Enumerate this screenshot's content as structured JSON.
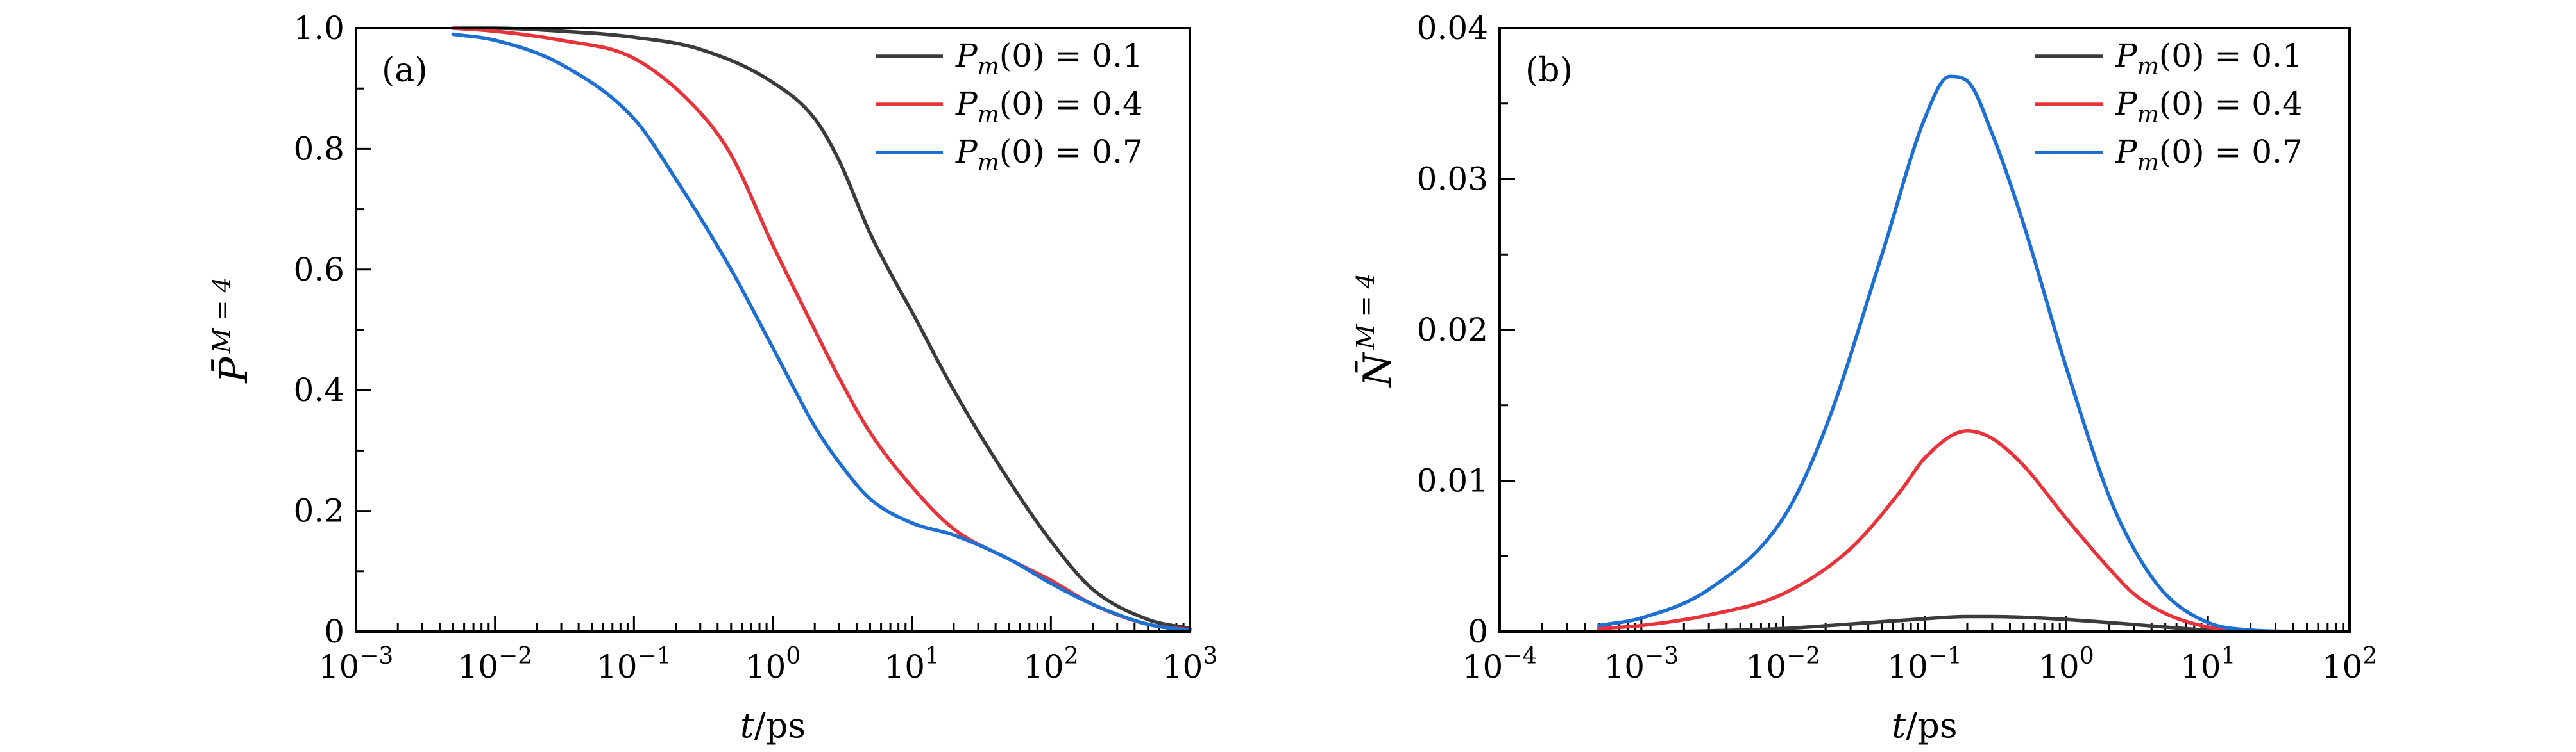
{
  "colors": {
    "black": "#3b3b3b",
    "red": "#e8333b",
    "blue": "#1e6fd2"
  },
  "chart_data": [
    {
      "type": "line",
      "panel_label": "(a)",
      "xscale": "log",
      "xlim": [
        0.001,
        1000
      ],
      "ylim": [
        0,
        1.0
      ],
      "xlabel": "t/ps",
      "ylabel": "P̄ M = 4",
      "x_ticks": [
        "10−3",
        "10−2",
        "10−1",
        "100",
        "101",
        "102",
        "103"
      ],
      "y_ticks": [
        "0",
        "0.2",
        "0.4",
        "0.6",
        "0.8",
        "1.0"
      ],
      "legend_position": "top-right",
      "series": [
        {
          "name": "Pm(0) = 0.1",
          "color": "#3b3b3b",
          "x": [
            0.005,
            0.01,
            0.03,
            0.1,
            0.3,
            1,
            2,
            3,
            5,
            8,
            10,
            20,
            50,
            100,
            200,
            500,
            1000
          ],
          "y": [
            1.0,
            1.0,
            0.995,
            0.985,
            0.965,
            0.91,
            0.85,
            0.78,
            0.66,
            0.57,
            0.53,
            0.4,
            0.25,
            0.15,
            0.07,
            0.02,
            0.005
          ]
        },
        {
          "name": "Pm(0) = 0.4",
          "color": "#e8333b",
          "x": [
            0.005,
            0.01,
            0.03,
            0.1,
            0.3,
            0.5,
            1,
            2,
            3,
            5,
            10,
            20,
            50,
            100,
            200,
            500,
            1000
          ],
          "y": [
            1.0,
            0.995,
            0.98,
            0.95,
            0.86,
            0.79,
            0.64,
            0.5,
            0.42,
            0.33,
            0.24,
            0.17,
            0.12,
            0.085,
            0.045,
            0.012,
            0.003
          ]
        },
        {
          "name": "Pm(0) = 0.7",
          "color": "#1e6fd2",
          "x": [
            0.005,
            0.01,
            0.03,
            0.1,
            0.2,
            0.5,
            1,
            2,
            3,
            5,
            10,
            20,
            50,
            100,
            200,
            500,
            1000
          ],
          "y": [
            0.99,
            0.98,
            0.94,
            0.85,
            0.75,
            0.6,
            0.47,
            0.34,
            0.28,
            0.22,
            0.18,
            0.16,
            0.12,
            0.08,
            0.045,
            0.012,
            0.002
          ]
        }
      ]
    },
    {
      "type": "line",
      "panel_label": "(b)",
      "xscale": "log",
      "xlim": [
        0.0001,
        100
      ],
      "ylim": [
        0,
        0.04
      ],
      "xlabel": "t/ps",
      "ylabel": "N̄ M = 4",
      "x_ticks": [
        "10−4",
        "10−3",
        "10−2",
        "10−1",
        "100",
        "101",
        "102"
      ],
      "y_ticks": [
        "0",
        "0.01",
        "0.02",
        "0.03",
        "0.04"
      ],
      "legend_position": "top-right",
      "series": [
        {
          "name": "Pm(0) = 0.1",
          "color": "#3b3b3b",
          "x": [
            0.0005,
            0.001,
            0.003,
            0.01,
            0.03,
            0.1,
            0.2,
            0.3,
            0.5,
            1,
            2,
            5,
            10,
            20,
            50,
            100
          ],
          "y": [
            0.0,
            0.0,
            5e-05,
            0.0002,
            0.0005,
            0.00085,
            0.001,
            0.001,
            0.00095,
            0.0008,
            0.0006,
            0.0003,
            0.0001,
            3e-05,
            0.0,
            0.0
          ]
        },
        {
          "name": "Pm(0) = 0.4",
          "color": "#e8333b",
          "x": [
            0.0005,
            0.001,
            0.003,
            0.01,
            0.03,
            0.07,
            0.1,
            0.2,
            0.3,
            0.5,
            1,
            2,
            3,
            5,
            10,
            20,
            50,
            100
          ],
          "y": [
            0.0002,
            0.0004,
            0.0011,
            0.0025,
            0.0055,
            0.0095,
            0.0115,
            0.0133,
            0.0128,
            0.011,
            0.0075,
            0.0042,
            0.0025,
            0.0012,
            0.0003,
            5e-05,
            0.0,
            0.0
          ]
        },
        {
          "name": "Pm(0) = 0.7",
          "color": "#1e6fd2",
          "x": [
            0.0005,
            0.001,
            0.003,
            0.01,
            0.02,
            0.05,
            0.1,
            0.15,
            0.2,
            0.3,
            0.5,
            1,
            2,
            3,
            5,
            10,
            20,
            50,
            100
          ],
          "y": [
            0.0004,
            0.0009,
            0.0028,
            0.0075,
            0.0135,
            0.025,
            0.034,
            0.0368,
            0.0365,
            0.033,
            0.027,
            0.0175,
            0.009,
            0.0055,
            0.0025,
            0.0006,
            0.0001,
            0.0,
            0.0
          ]
        }
      ]
    }
  ]
}
